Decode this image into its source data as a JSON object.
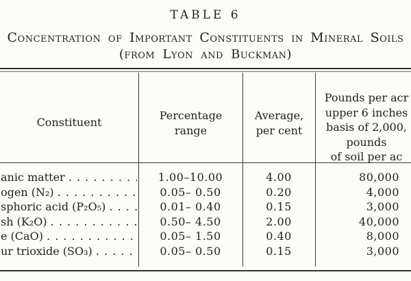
{
  "page": {
    "table_number": "TABLE 6",
    "title": "Concentration of Important Constituents in Mineral Soils",
    "source": "(from Lyon and Buckman)"
  },
  "table": {
    "columns": {
      "constituent": "Constituent",
      "range_line1": "Percentage",
      "range_line2": "range",
      "average_line1": "Average,",
      "average_line2": "per cent",
      "pounds_line1": "Pounds per acr",
      "pounds_line2": "upper 6 inches",
      "pounds_line3": "basis of 2,000,",
      "pounds_line4": "pounds",
      "pounds_line5": "of soil per ac"
    },
    "rows": [
      {
        "constituent": "anic matter",
        "leader": ". . . . . . . . . .",
        "range": "1.00–10.00",
        "average": "4.00",
        "pounds": "80,000"
      },
      {
        "constituent": "ogen (N₂)",
        "leader": ". . . . . . . . . . .",
        "range": "0.05– 0.50",
        "average": "0.20",
        "pounds": "4,000"
      },
      {
        "constituent": "sphoric acid (P₂O₅)",
        "leader": ". . . .",
        "range": "0.01– 0.40",
        "average": "0.15",
        "pounds": "3,000"
      },
      {
        "constituent": "sh (K₂O)",
        "leader": ". . . . . . . . . . . .",
        "range": "0.50– 4.50",
        "average": "2.00",
        "pounds": "40,000"
      },
      {
        "constituent": "e (CaO)",
        "leader": ". . . . . . . . . . . . .",
        "range": "0.05– 1.50",
        "average": "0.40",
        "pounds": "8,000"
      },
      {
        "constituent": "ur trioxide (SO₃)",
        "leader": ". . . . . .",
        "range": "0.05– 0.50",
        "average": "0.15",
        "pounds": "3,000"
      }
    ]
  },
  "colors": {
    "paper": "#fcfcfa",
    "ink": "#1f1f1f",
    "rule": "#2e2e2e"
  }
}
